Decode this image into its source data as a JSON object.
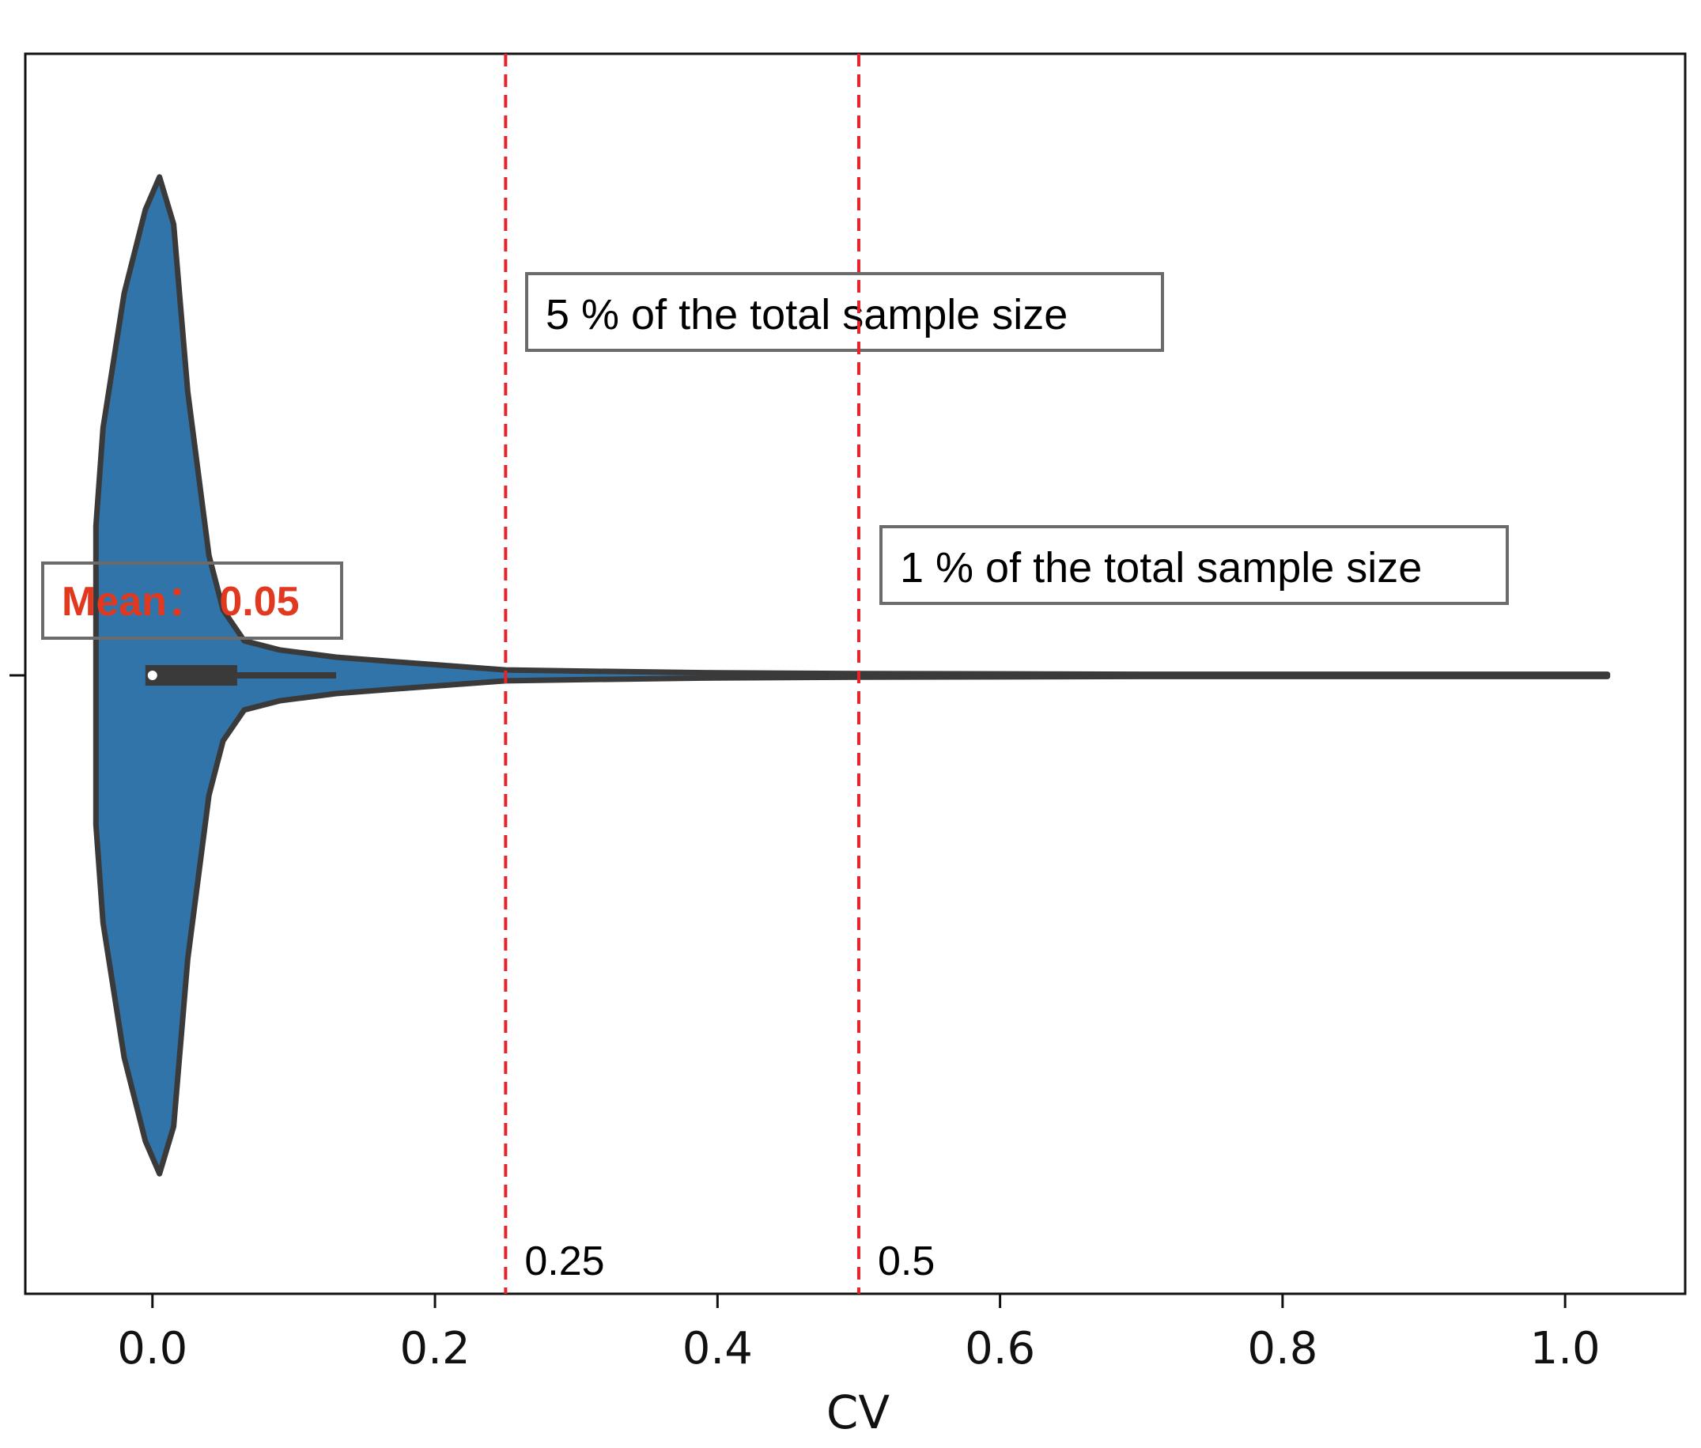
{
  "chart_data": {
    "type": "violin",
    "xlabel": "CV",
    "ylabel": "",
    "xlim": [
      -0.09,
      1.085
    ],
    "xticks": [
      "0.0",
      "0.2",
      "0.4",
      "0.6",
      "0.8",
      "1.0"
    ],
    "xtick_values": [
      0.0,
      0.2,
      0.4,
      0.6,
      0.8,
      1.0
    ],
    "grid": false,
    "violin_color": "#3174a9",
    "outline_color": "#3a3a3a",
    "distribution": {
      "x_min": -0.04,
      "x_max": 1.03,
      "median": 0.0,
      "q1": -0.005,
      "q3": 0.06,
      "whisker_high": 0.13,
      "density_profile": [
        [
          -0.04,
          0.41
        ],
        [
          -0.035,
          0.68
        ],
        [
          -0.02,
          1.05
        ],
        [
          -0.005,
          1.28
        ],
        [
          0.005,
          1.37
        ],
        [
          0.015,
          1.24
        ],
        [
          0.025,
          0.78
        ],
        [
          0.04,
          0.33
        ],
        [
          0.05,
          0.18
        ],
        [
          0.065,
          0.095
        ],
        [
          0.09,
          0.07
        ],
        [
          0.13,
          0.05
        ],
        [
          0.18,
          0.035
        ],
        [
          0.25,
          0.015
        ],
        [
          0.3,
          0.012
        ],
        [
          0.4,
          0.007
        ],
        [
          0.5,
          0.005
        ],
        [
          0.7,
          0.003
        ],
        [
          0.9,
          0.003
        ],
        [
          1.03,
          0.003
        ]
      ]
    },
    "reference_lines": [
      {
        "x": 0.25,
        "label": "0.25",
        "annotation": "5 % of the total sample size",
        "color": "#e8242b"
      },
      {
        "x": 0.5,
        "label": "0.5",
        "annotation": "1 % of the total sample size",
        "color": "#e8242b"
      }
    ],
    "mean_annotation": {
      "text": "Mean： 0.05",
      "value": 0.05,
      "color": "#e0391f"
    }
  }
}
